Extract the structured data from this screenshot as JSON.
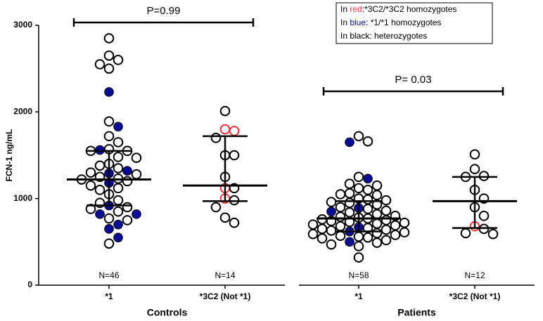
{
  "chart_data": {
    "type": "dot",
    "y_label": "FCN-1 ng/mL",
    "ylim": [
      0,
      3000
    ],
    "yticks": [
      0,
      1000,
      2000,
      3000
    ],
    "legend": [
      {
        "prefix": "In ",
        "word": "red",
        "suffix": ":*3C2/*3C2 homozygotes",
        "color": "#e8333a"
      },
      {
        "prefix": "In ",
        "word": "blue",
        "suffix": ": *1/*1 homozygotes",
        "color": "#0a0a96"
      },
      {
        "prefix": "In ",
        "word": "black",
        "suffix": ": heterozygotes",
        "color": "#000000"
      }
    ],
    "panels": [
      {
        "name": "Controls",
        "comparison": "P=0.99",
        "columns": [
          {
            "category": "*1",
            "n_label": "N=46",
            "median": 1220,
            "q1": 920,
            "q3": 1550,
            "values": [
              2850,
              2650,
              2600,
              2550,
              2500,
              2230,
              1890,
              1830,
              1720,
              1650,
              1570,
              1560,
              1550,
              1550,
              1480,
              1470,
              1400,
              1380,
              1350,
              1320,
              1300,
              1290,
              1280,
              1250,
              1230,
              1220,
              1200,
              1180,
              1150,
              1120,
              1100,
              1050,
              980,
              950,
              920,
              900,
              880,
              850,
              820,
              820,
              770,
              750,
              700,
              650,
              550,
              480
            ],
            "colors": [
              "#000000",
              "#000000",
              "#000000",
              "#000000",
              "#000000",
              "#0a0a96",
              "#000000",
              "#0a0a96",
              "#000000",
              "#000000",
              "#000000",
              "#0a0a96",
              "#000000",
              "#000000",
              "#000000",
              "#000000",
              "#000000",
              "#000000",
              "#000000",
              "#0a0a96",
              "#000000",
              "#0a0a96",
              "#000000",
              "#000000",
              "#000000",
              "#000000",
              "#000000",
              "#0a0a96",
              "#000000",
              "#000000",
              "#000000",
              "#000000",
              "#000000",
              "#000000",
              "#0a0a96",
              "#000000",
              "#000000",
              "#000000",
              "#0a0a96",
              "#0a0a96",
              "#000000",
              "#000000",
              "#0a0a96",
              "#0a0a96",
              "#0a0a96",
              "#000000"
            ]
          },
          {
            "category": "*3C2 (Not *1)",
            "n_label": "N=14",
            "median": 1150,
            "q1": 970,
            "q3": 1720,
            "values": [
              2010,
              1800,
              1780,
              1700,
              1500,
              1500,
              1250,
              1120,
              1120,
              1000,
              980,
              900,
              780,
              720
            ],
            "colors": [
              "#000000",
              "#e8333a",
              "#e8333a",
              "#000000",
              "#000000",
              "#000000",
              "#000000",
              "#e8333a",
              "#000000",
              "#e8333a",
              "#000000",
              "#000000",
              "#000000",
              "#000000"
            ]
          }
        ]
      },
      {
        "name": "Patients",
        "comparison": "P= 0.03",
        "columns": [
          {
            "category": "*1",
            "n_label": "N=58",
            "median": 770,
            "q1": 620,
            "q3": 970,
            "values": [
              1720,
              1660,
              1650,
              1250,
              1230,
              1170,
              1150,
              1120,
              1100,
              1060,
              1050,
              1040,
              1000,
              990,
              980,
              960,
              950,
              930,
              900,
              890,
              880,
              860,
              850,
              840,
              820,
              800,
              790,
              780,
              770,
              760,
              750,
              740,
              730,
              720,
              710,
              700,
              690,
              680,
              670,
              660,
              650,
              640,
              630,
              620,
              610,
              600,
              590,
              580,
              570,
              560,
              550,
              540,
              520,
              500,
              490,
              470,
              450,
              320
            ],
            "colors": [
              "#000000",
              "#000000",
              "#0a0a96",
              "#000000",
              "#0a0a96",
              "#000000",
              "#000000",
              "#000000",
              "#000000",
              "#000000",
              "#000000",
              "#000000",
              "#000000",
              "#000000",
              "#000000",
              "#000000",
              "#000000",
              "#000000",
              "#000000",
              "#0a0a96",
              "#000000",
              "#000000",
              "#0a0a96",
              "#000000",
              "#000000",
              "#000000",
              "#000000",
              "#000000",
              "#000000",
              "#000000",
              "#000000",
              "#000000",
              "#000000",
              "#000000",
              "#000000",
              "#000000",
              "#000000",
              "#000000",
              "#0a0a96",
              "#000000",
              "#000000",
              "#000000",
              "#000000",
              "#0a0a96",
              "#000000",
              "#000000",
              "#000000",
              "#000000",
              "#000000",
              "#000000",
              "#000000",
              "#000000",
              "#000000",
              "#0a0a96",
              "#000000",
              "#000000",
              "#000000",
              "#000000"
            ]
          },
          {
            "category": "*3C2 (Not *1)",
            "n_label": "N=12",
            "median": 970,
            "q1": 660,
            "q3": 1250,
            "values": [
              1510,
              1340,
              1260,
              1250,
              1100,
              1000,
              900,
              800,
              680,
              650,
              600,
              590
            ],
            "colors": [
              "#000000",
              "#000000",
              "#000000",
              "#000000",
              "#000000",
              "#000000",
              "#000000",
              "#000000",
              "#e8333a",
              "#000000",
              "#000000",
              "#000000"
            ]
          }
        ]
      }
    ]
  }
}
